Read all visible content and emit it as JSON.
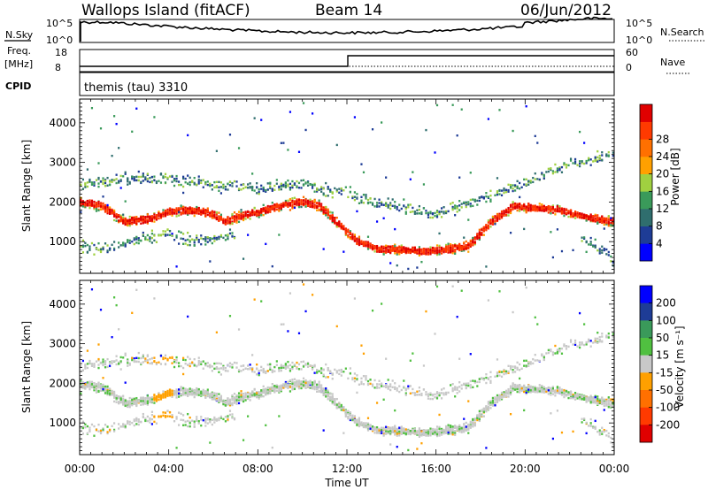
{
  "header": {
    "station": "Wallops Island (fitACF)",
    "beam": "Beam 14",
    "date": "06/Jun/2012"
  },
  "top_panels": {
    "nsky_label": "N.Sky",
    "nsky_ticks": [
      "10^5",
      "10^0"
    ],
    "nsearch_label": "N.Search",
    "nsearch_ticks": [
      "10^5",
      "10^0"
    ],
    "freq_label_1": "Freq.",
    "freq_label_2": "[MHz]",
    "freq_ticks": [
      "18",
      "8"
    ],
    "nave_label": "Nave",
    "nave_ticks": [
      "60",
      "0"
    ],
    "cpid_label": "CPID",
    "cpid_text": "themis (tau) 3310"
  },
  "colors": {
    "power": [
      "#0000ff",
      "#1e3c96",
      "#2f6e6e",
      "#3a9a5a",
      "#a0d040",
      "#ffa000",
      "#ff7000",
      "#ff3a00",
      "#e00000"
    ],
    "velocity": [
      "#0000ff",
      "#1e3c96",
      "#3a9a5a",
      "#50c040",
      "#c8c8c8",
      "#ffa000",
      "#ff7000",
      "#ff3a00",
      "#e00000"
    ],
    "gray": "#c8c8c8"
  },
  "chart_data": [
    {
      "type": "heatmap",
      "title": "",
      "xlabel": "Time UT",
      "ylabel": "Slant Range [km]",
      "x_ticks": [
        "00:00",
        "04:00",
        "08:00",
        "12:00",
        "16:00",
        "20:00",
        "00:00"
      ],
      "y_ticks": [
        1000,
        2000,
        3000,
        4000
      ],
      "xlim": [
        0,
        24
      ],
      "ylim": [
        200,
        4600
      ],
      "colorbar": {
        "label": "Power [dB]",
        "ticks": [
          4,
          8,
          12,
          16,
          20,
          24,
          28
        ],
        "range": [
          0,
          32
        ]
      },
      "echo_bands": [
        {
          "name": "main",
          "points": [
            [
              0.0,
              2000
            ],
            [
              1.0,
              1900
            ],
            [
              2.0,
              1500
            ],
            [
              3.0,
              1550
            ],
            [
              3.5,
              1650
            ],
            [
              4.0,
              1750
            ],
            [
              5.0,
              1800
            ],
            [
              6.0,
              1700
            ],
            [
              6.5,
              1500
            ],
            [
              7.0,
              1600
            ],
            [
              8.0,
              1750
            ],
            [
              9.0,
              1900
            ],
            [
              10.0,
              2000
            ],
            [
              10.8,
              1900
            ],
            [
              11.5,
              1500
            ],
            [
              12.5,
              1000
            ],
            [
              13.5,
              800
            ],
            [
              14.5,
              800
            ],
            [
              15.5,
              750
            ],
            [
              16.5,
              800
            ],
            [
              17.5,
              900
            ],
            [
              18.5,
              1500
            ],
            [
              19.5,
              1900
            ],
            [
              20.5,
              1850
            ],
            [
              21.5,
              1800
            ],
            [
              22.5,
              1650
            ],
            [
              23.5,
              1550
            ],
            [
              24.0,
              1500
            ]
          ]
        },
        {
          "name": "lower",
          "points": [
            [
              0.0,
              900
            ],
            [
              1.0,
              800
            ],
            [
              2.0,
              950
            ],
            [
              3.0,
              1100
            ],
            [
              4.0,
              1200
            ],
            [
              5.0,
              1000
            ],
            [
              6.0,
              1050
            ],
            [
              7.0,
              1150
            ]
          ]
        },
        {
          "name": "lower-late",
          "points": [
            [
              22.5,
              1100
            ],
            [
              23.5,
              750
            ],
            [
              24.0,
              550
            ]
          ]
        },
        {
          "name": "upper",
          "points": [
            [
              0.0,
              2400
            ],
            [
              2.0,
              2600
            ],
            [
              4.0,
              2600
            ],
            [
              6.0,
              2450
            ],
            [
              8.0,
              2350
            ],
            [
              10.0,
              2450
            ],
            [
              12.0,
              2200
            ],
            [
              14.0,
              1900
            ],
            [
              16.0,
              1700
            ],
            [
              18.0,
              2050
            ],
            [
              20.0,
              2500
            ],
            [
              22.0,
              2950
            ],
            [
              24.0,
              3200
            ]
          ]
        }
      ]
    },
    {
      "type": "heatmap",
      "title": "",
      "xlabel": "Time UT",
      "ylabel": "Slant Range [km]",
      "x_ticks": [
        "00:00",
        "04:00",
        "08:00",
        "12:00",
        "16:00",
        "20:00",
        "00:00"
      ],
      "y_ticks": [
        1000,
        2000,
        3000,
        4000
      ],
      "xlim": [
        0,
        24
      ],
      "ylim": [
        200,
        4600
      ],
      "colorbar": {
        "label": "Velocity [m s⁻¹]",
        "ticks": [
          200,
          100,
          50,
          15,
          -15,
          -50,
          -100,
          -200
        ]
      }
    }
  ]
}
